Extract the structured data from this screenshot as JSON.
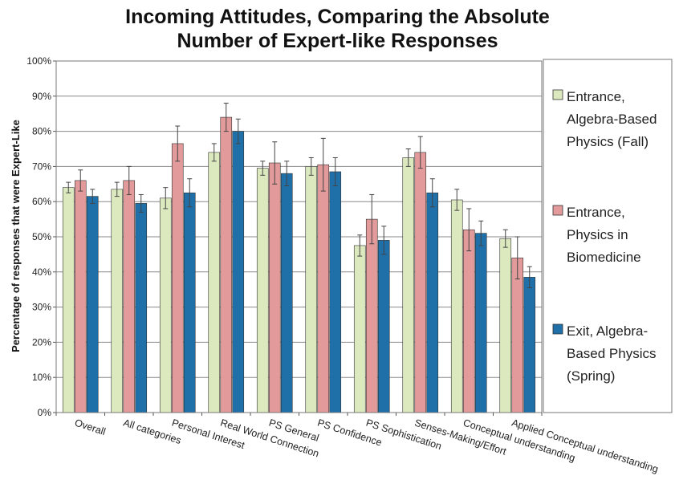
{
  "chart_data": {
    "type": "bar",
    "title_lines": [
      "Incoming Attitudes, Comparing the Absolute",
      "Number of Expert-like Responses"
    ],
    "ylabel": "Percentage of responses that were Expert-Like",
    "xlabel": "",
    "ylim": [
      0,
      100
    ],
    "yticks": [
      "0%",
      "10%",
      "20%",
      "30%",
      "40%",
      "50%",
      "60%",
      "70%",
      "80%",
      "90%",
      "100%"
    ],
    "grid": true,
    "legend_position": "right",
    "categories": [
      "Overall",
      "All categories",
      "Personal Interest",
      "Real World Connection",
      "PS General",
      "PS Confidence",
      "PS Sophistication",
      "Senses-Making/Effort",
      "Conceptual understanding",
      "Applied Conceptual understanding"
    ],
    "series": [
      {
        "name_lines": [
          "Entrance,",
          "Algebra-Based",
          "Physics (Fall)"
        ],
        "color": "#dce9bf",
        "values": [
          64,
          63.5,
          61,
          74,
          69.5,
          70,
          47.5,
          72.5,
          60.5,
          49.5
        ],
        "errors": [
          1.5,
          2,
          3,
          2.5,
          2,
          2.5,
          3,
          2.5,
          3,
          2.5
        ]
      },
      {
        "name_lines": [
          "Entrance,",
          "Physics in",
          "Biomedicine"
        ],
        "color": "#e29a9a",
        "values": [
          66,
          66,
          76.5,
          84,
          71,
          70.5,
          55,
          74,
          52,
          44
        ],
        "errors": [
          3,
          4,
          5,
          4,
          6,
          7.5,
          7,
          4.5,
          6,
          6
        ]
      },
      {
        "name_lines": [
          "Exit, Algebra-",
          "Based Physics",
          "(Spring)"
        ],
        "color": "#1f6fa8",
        "values": [
          61.5,
          59.5,
          62.5,
          80,
          68,
          68.5,
          49,
          62.5,
          51,
          38.5
        ],
        "errors": [
          2,
          2.5,
          4,
          3.5,
          3.5,
          4,
          4,
          4,
          3.5,
          3
        ]
      }
    ]
  }
}
